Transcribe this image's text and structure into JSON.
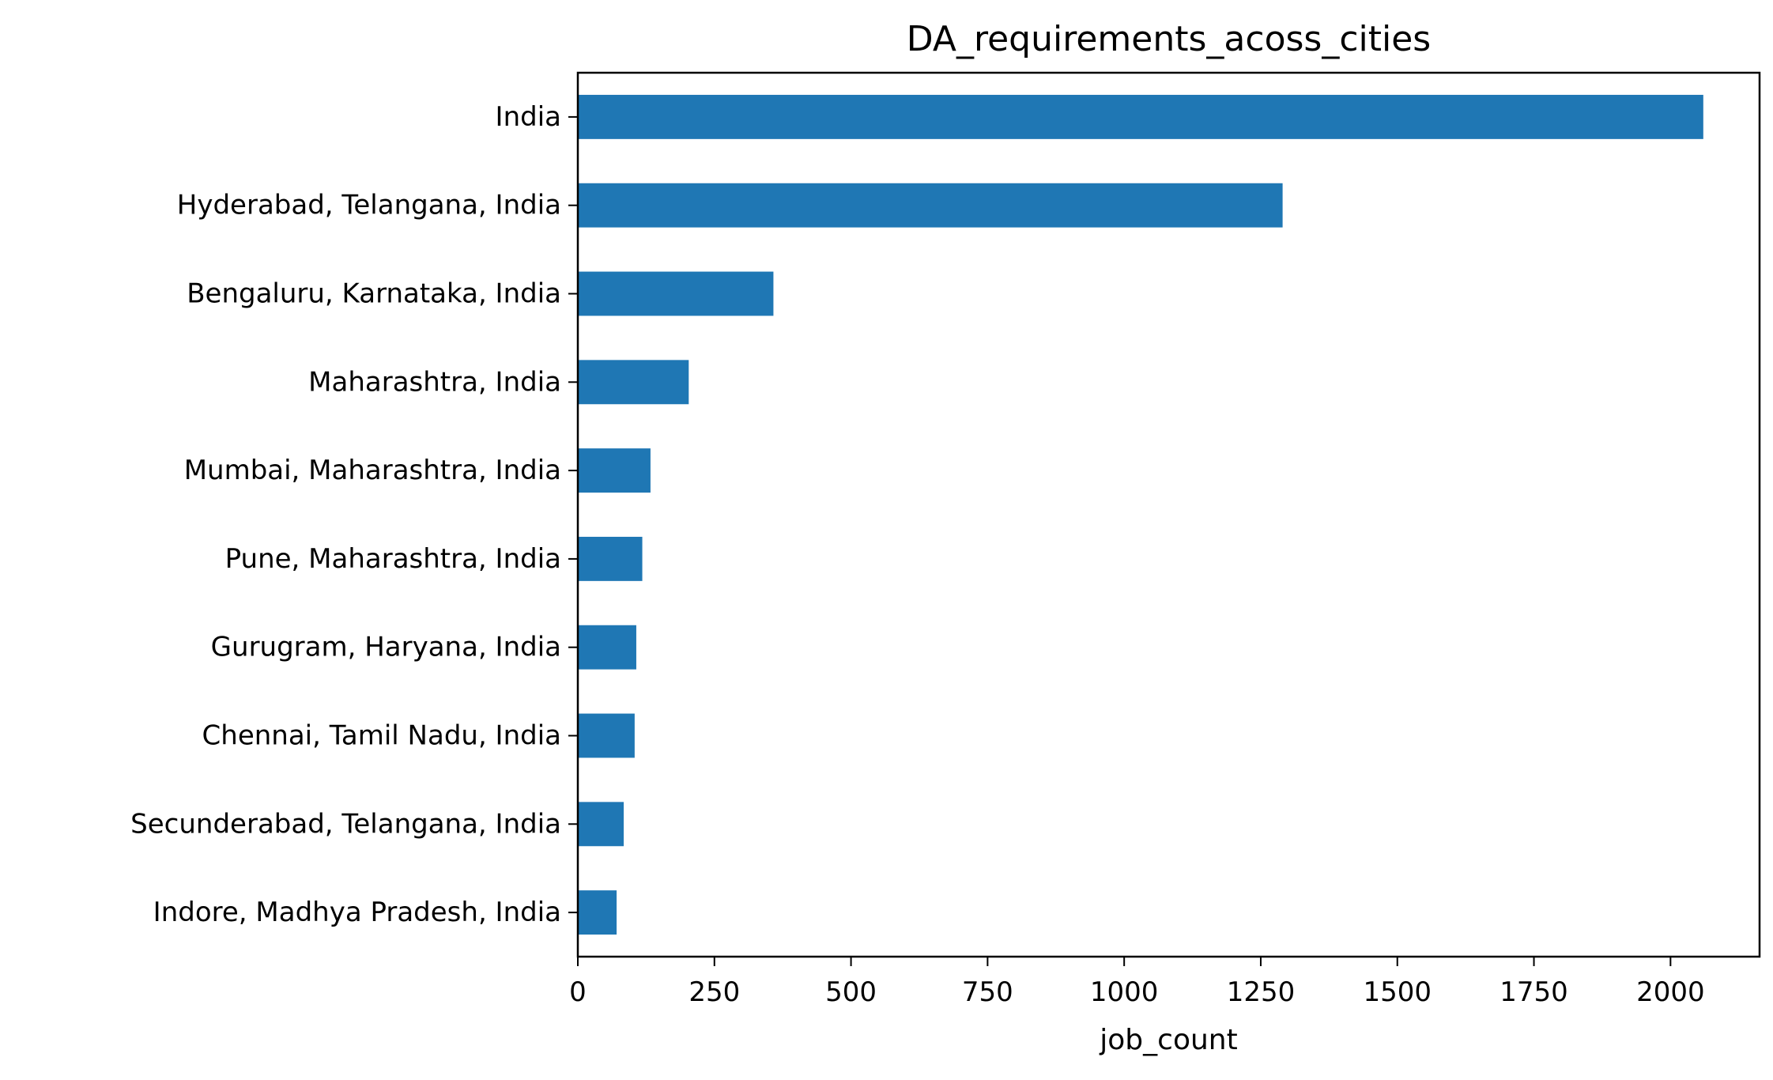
{
  "chart_data": {
    "type": "bar",
    "orientation": "horizontal",
    "title": "DA_requirements_acoss_cities",
    "xlabel": "job_count",
    "ylabel": "",
    "categories": [
      "India",
      "Hyderabad, Telangana, India",
      "Bengaluru, Karnataka, India",
      "Maharashtra, India",
      "Mumbai, Maharashtra, India",
      "Pune, Maharashtra, India",
      "Gurugram, Haryana, India",
      "Chennai, Tamil Nadu, India",
      "Secunderabad, Telangana, India",
      "Indore, Madhya Pradesh, India"
    ],
    "values": [
      2060,
      1290,
      358,
      203,
      133,
      118,
      107,
      104,
      84,
      71
    ],
    "xlim": [
      0,
      2163
    ],
    "xticks": [
      "0",
      "250",
      "500",
      "750",
      "1000",
      "1250",
      "1500",
      "1750",
      "2000"
    ],
    "grid": false,
    "legend": false,
    "bar_color": "#1f77b4"
  }
}
